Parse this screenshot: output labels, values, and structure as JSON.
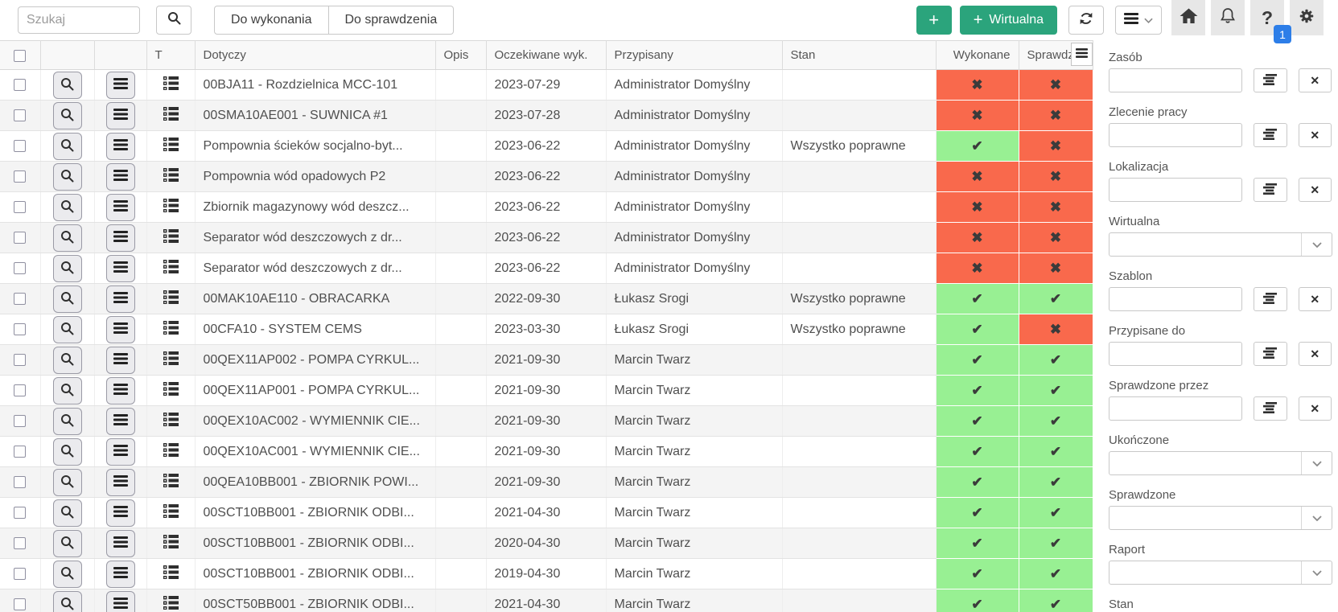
{
  "toolbar": {
    "search_placeholder": "Szukaj",
    "filter_buttons": [
      "Do wykonania",
      "Do sprawdzenia"
    ],
    "add_label": "+",
    "add_virtual_plus": "+",
    "add_virtual_label": "Wirtualna",
    "help_label": "?",
    "help_badge": "1"
  },
  "icons": {
    "search": "magnifier-icon",
    "refresh": "sync-arrows-icon",
    "menu": "hamburger-icon",
    "home": "house-icon",
    "notifications": "bell-icon",
    "settings": "gear-icon",
    "row_preview": "magnifier-icon",
    "row_menu": "hamburger-icon",
    "task_type": "checklist-icon",
    "lookup_pick": "list-lines-icon",
    "column_chooser": "hamburger-icon",
    "chevron": "chevron-down-icon",
    "clear_glyph": "✕",
    "status_ok_glyph": "✔",
    "status_fail_glyph": "✖"
  },
  "colors": {
    "accent_green": "#2ba47c",
    "status_ok_bg": "#98f093",
    "status_fail_bg": "#f9694c",
    "badge_blue": "#2d7ee8"
  },
  "table": {
    "columns": [
      {
        "key": "select",
        "label": ""
      },
      {
        "key": "preview",
        "label": ""
      },
      {
        "key": "menu",
        "label": ""
      },
      {
        "key": "t",
        "label": "T"
      },
      {
        "key": "dotyczy",
        "label": "Dotyczy"
      },
      {
        "key": "opis",
        "label": "Opis"
      },
      {
        "key": "oczekiwane",
        "label": "Oczekiwane wyk."
      },
      {
        "key": "przypisany",
        "label": "Przypisany"
      },
      {
        "key": "stan",
        "label": "Stan"
      },
      {
        "key": "wykonane",
        "label": "Wykonane"
      },
      {
        "key": "sprawdzone",
        "label": "Sprawdzone"
      }
    ],
    "rows": [
      {
        "dotyczy": "00BJA11 - Rozdzielnica MCC-101",
        "opis": "",
        "oczekiwane_wyk": "2023-07-29",
        "przypisany": "Administrator Domyślny",
        "stan": "",
        "wykonane": "fail",
        "sprawdzone": "fail"
      },
      {
        "dotyczy": "00SMA10AE001 - SUWNICA #1",
        "opis": "",
        "oczekiwane_wyk": "2023-07-28",
        "przypisany": "Administrator Domyślny",
        "stan": "",
        "wykonane": "fail",
        "sprawdzone": "fail"
      },
      {
        "dotyczy": "Pompownia ścieków socjalno-byt...",
        "opis": "",
        "oczekiwane_wyk": "2023-06-22",
        "przypisany": "Administrator Domyślny",
        "stan": "Wszystko poprawne",
        "wykonane": "ok",
        "sprawdzone": "fail"
      },
      {
        "dotyczy": "Pompownia wód opadowych P2",
        "opis": "",
        "oczekiwane_wyk": "2023-06-22",
        "przypisany": "Administrator Domyślny",
        "stan": "",
        "wykonane": "fail",
        "sprawdzone": "fail"
      },
      {
        "dotyczy": "Zbiornik magazynowy wód deszcz...",
        "opis": "",
        "oczekiwane_wyk": "2023-06-22",
        "przypisany": "Administrator Domyślny",
        "stan": "",
        "wykonane": "fail",
        "sprawdzone": "fail"
      },
      {
        "dotyczy": "Separator wód deszczowych z dr...",
        "opis": "",
        "oczekiwane_wyk": "2023-06-22",
        "przypisany": "Administrator Domyślny",
        "stan": "",
        "wykonane": "fail",
        "sprawdzone": "fail"
      },
      {
        "dotyczy": "Separator wód deszczowych z dr...",
        "opis": "",
        "oczekiwane_wyk": "2023-06-22",
        "przypisany": "Administrator Domyślny",
        "stan": "",
        "wykonane": "fail",
        "sprawdzone": "fail"
      },
      {
        "dotyczy": "00MAK10AE110 - OBRACARKA",
        "opis": "",
        "oczekiwane_wyk": "2022-09-30",
        "przypisany": "Łukasz Srogi",
        "stan": "Wszystko poprawne",
        "wykonane": "ok",
        "sprawdzone": "ok"
      },
      {
        "dotyczy": "00CFA10 - SYSTEM CEMS",
        "opis": "",
        "oczekiwane_wyk": "2023-03-30",
        "przypisany": "Łukasz Srogi",
        "stan": "Wszystko poprawne",
        "wykonane": "ok",
        "sprawdzone": "fail"
      },
      {
        "dotyczy": "00QEX11AP002 - POMPA CYRKUL...",
        "opis": "",
        "oczekiwane_wyk": "2021-09-30",
        "przypisany": "Marcin Twarz",
        "stan": "",
        "wykonane": "ok",
        "sprawdzone": "ok"
      },
      {
        "dotyczy": "00QEX11AP001 - POMPA CYRKUL...",
        "opis": "",
        "oczekiwane_wyk": "2021-09-30",
        "przypisany": "Marcin Twarz",
        "stan": "",
        "wykonane": "ok",
        "sprawdzone": "ok"
      },
      {
        "dotyczy": "00QEX10AC002 - WYMIENNIK CIE...",
        "opis": "",
        "oczekiwane_wyk": "2021-09-30",
        "przypisany": "Marcin Twarz",
        "stan": "",
        "wykonane": "ok",
        "sprawdzone": "ok"
      },
      {
        "dotyczy": "00QEX10AC001 - WYMIENNIK CIE...",
        "opis": "",
        "oczekiwane_wyk": "2021-09-30",
        "przypisany": "Marcin Twarz",
        "stan": "",
        "wykonane": "ok",
        "sprawdzone": "ok"
      },
      {
        "dotyczy": "00QEA10BB001 - ZBIORNIK POWI...",
        "opis": "",
        "oczekiwane_wyk": "2021-09-30",
        "przypisany": "Marcin Twarz",
        "stan": "",
        "wykonane": "ok",
        "sprawdzone": "ok"
      },
      {
        "dotyczy": "00SCT10BB001 - ZBIORNIK ODBI...",
        "opis": "",
        "oczekiwane_wyk": "2021-04-30",
        "przypisany": "Marcin Twarz",
        "stan": "",
        "wykonane": "ok",
        "sprawdzone": "ok"
      },
      {
        "dotyczy": "00SCT10BB001 - ZBIORNIK ODBI...",
        "opis": "",
        "oczekiwane_wyk": "2020-04-30",
        "przypisany": "Marcin Twarz",
        "stan": "",
        "wykonane": "ok",
        "sprawdzone": "ok"
      },
      {
        "dotyczy": "00SCT10BB001 - ZBIORNIK ODBI...",
        "opis": "",
        "oczekiwane_wyk": "2019-04-30",
        "przypisany": "Marcin Twarz",
        "stan": "",
        "wykonane": "ok",
        "sprawdzone": "ok"
      },
      {
        "dotyczy": "00SCT50BB001 - ZBIORNIK ODBI...",
        "opis": "",
        "oczekiwane_wyk": "2021-04-30",
        "przypisany": "Marcin Twarz",
        "stan": "",
        "wykonane": "ok",
        "sprawdzone": "ok"
      }
    ]
  },
  "sidebar": {
    "fields": [
      {
        "label": "Zasób",
        "type": "lookup",
        "value": ""
      },
      {
        "label": "Zlecenie pracy",
        "type": "lookup",
        "value": ""
      },
      {
        "label": "Lokalizacja",
        "type": "lookup",
        "value": ""
      },
      {
        "label": "Wirtualna",
        "type": "select",
        "value": ""
      },
      {
        "label": "Szablon",
        "type": "lookup",
        "value": ""
      },
      {
        "label": "Przypisane do",
        "type": "lookup",
        "value": ""
      },
      {
        "label": "Sprawdzone przez",
        "type": "lookup",
        "value": ""
      },
      {
        "label": "Ukończone",
        "type": "select",
        "value": ""
      },
      {
        "label": "Sprawdzone",
        "type": "select",
        "value": ""
      },
      {
        "label": "Raport",
        "type": "select",
        "value": ""
      },
      {
        "label": "Stan",
        "type": "select",
        "value": ""
      }
    ]
  }
}
